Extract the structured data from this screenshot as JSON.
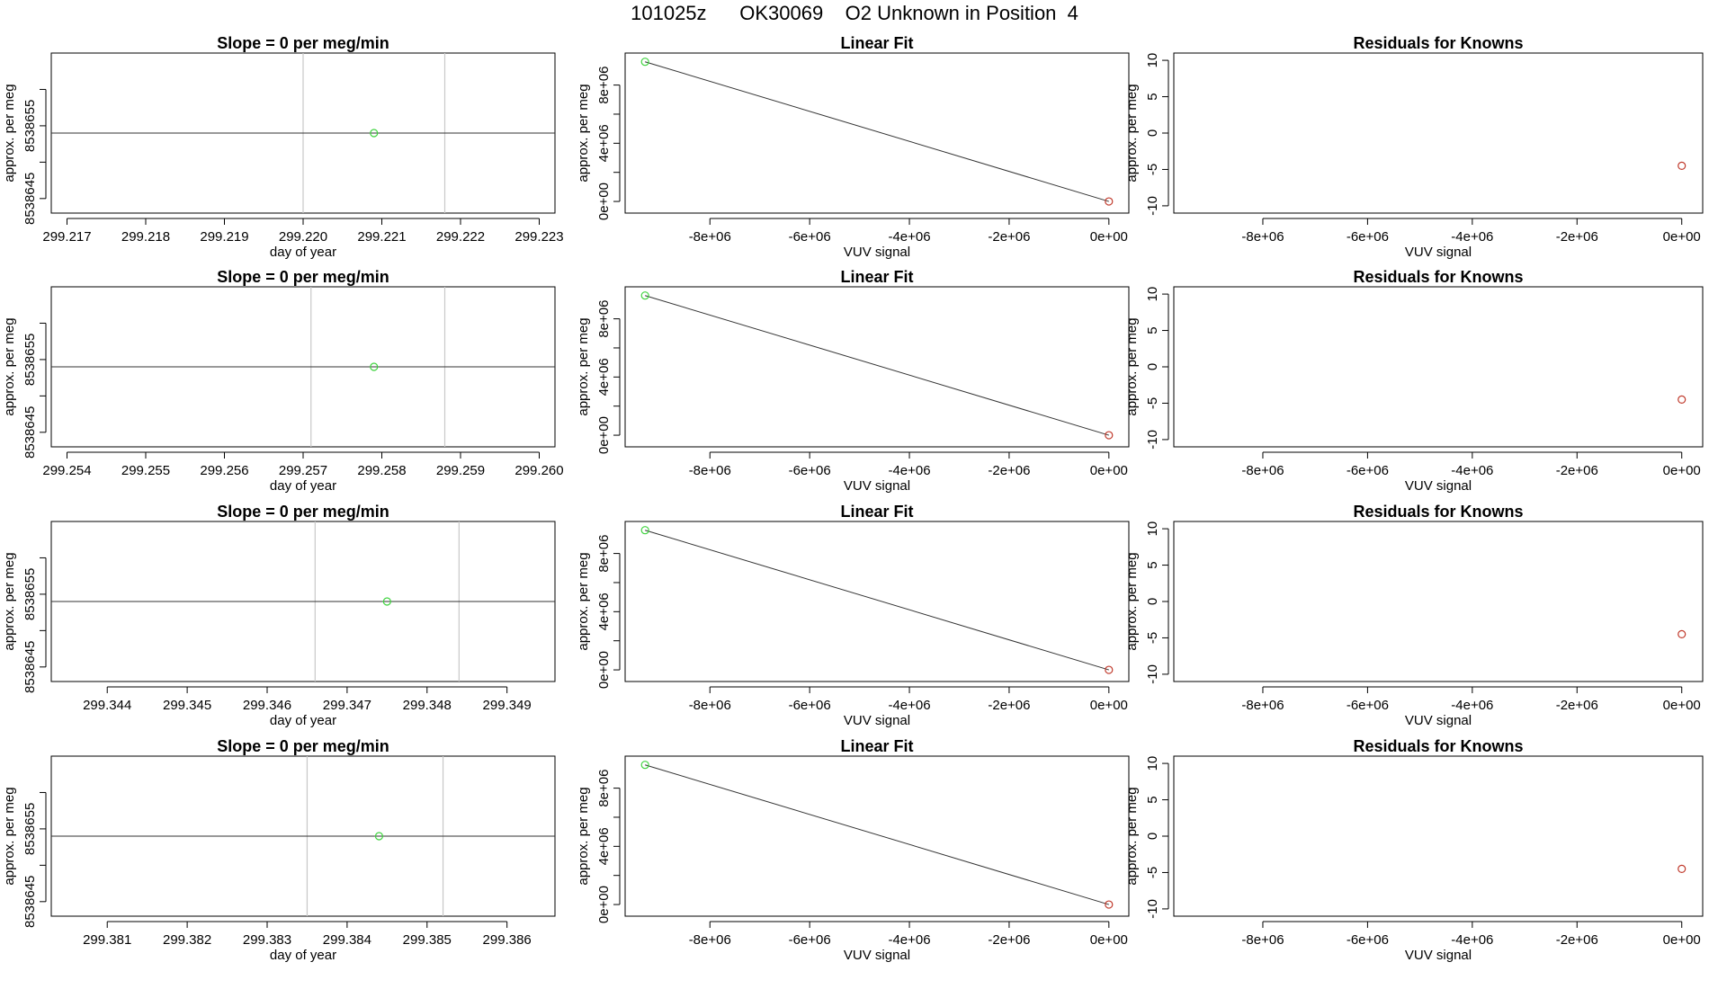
{
  "figure": {
    "title": "101025z      OK30069    O2 Unknown in Position  4"
  },
  "chart_data": [
    {
      "type": "line",
      "panel": "drift",
      "title": "Slope =  0  per meg/min",
      "xlabel": "day of year",
      "ylabel": "approx. per meg",
      "xlim": [
        299.2168,
        299.2232
      ],
      "ylim": [
        8538643,
        8538665
      ],
      "x_ticks": [
        299.217,
        299.218,
        299.219,
        299.22,
        299.221,
        299.222,
        299.223
      ],
      "x_tick_labels": [
        "299.217",
        "299.218",
        "299.219",
        "299.220",
        "299.221",
        "299.222",
        "299.223"
      ],
      "y_ticks": [
        8538645,
        8538650,
        8538655,
        8538660
      ],
      "y_tick_labels": [
        "8538645",
        "",
        "8538655",
        ""
      ],
      "vlines": [
        299.22,
        299.2218
      ],
      "series": [
        {
          "line": [
            [
              299.2168,
              8538654
            ],
            [
              299.2232,
              8538654
            ]
          ],
          "points": [
            {
              "x": 299.2209,
              "y": 8538654,
              "color": "#3fd33f"
            }
          ]
        }
      ]
    },
    {
      "type": "scatter",
      "panel": "fit",
      "title": "Linear Fit",
      "xlabel": "VUV signal",
      "ylabel": "approx. per meg",
      "xlim": [
        -9700000,
        400000
      ],
      "ylim": [
        -800000,
        10200000
      ],
      "x_ticks": [
        -8000000,
        -6000000,
        -4000000,
        -2000000,
        0
      ],
      "x_tick_labels": [
        "-8e+06",
        "-6e+06",
        "-4e+06",
        "-2e+06",
        "0e+00"
      ],
      "y_ticks": [
        0,
        2000000,
        4000000,
        6000000,
        8000000
      ],
      "y_tick_labels": [
        "0e+00",
        "",
        "4e+06",
        "",
        "8e+06"
      ],
      "series": [
        {
          "line": [
            [
              -9300000,
              9600000
            ],
            [
              0,
              0
            ]
          ],
          "points": [
            {
              "x": -9300000,
              "y": 9600000,
              "color": "#3fd33f"
            },
            {
              "x": 0,
              "y": 0,
              "color": "#c0392b"
            }
          ]
        }
      ]
    },
    {
      "type": "scatter",
      "panel": "resid",
      "title": "Residuals for Knowns",
      "xlabel": "VUV signal",
      "ylabel": "approx. per meg",
      "xlim": [
        -9700000,
        400000
      ],
      "ylim": [
        -11,
        11
      ],
      "x_ticks": [
        -8000000,
        -6000000,
        -4000000,
        -2000000,
        0
      ],
      "x_tick_labels": [
        "-8e+06",
        "-6e+06",
        "-4e+06",
        "-2e+06",
        "0e+00"
      ],
      "y_ticks": [
        -10,
        -5,
        0,
        5,
        10
      ],
      "y_tick_labels": [
        "-10",
        "-5",
        "0",
        "5",
        "10"
      ],
      "series": [
        {
          "points": [
            {
              "x": 0,
              "y": -4.5,
              "color": "#c0392b"
            }
          ]
        }
      ]
    },
    {
      "type": "line",
      "panel": "drift",
      "title": "Slope =  0  per meg/min",
      "xlabel": "day of year",
      "ylabel": "approx. per meg",
      "xlim": [
        299.2538,
        299.2602
      ],
      "ylim": [
        8538643,
        8538665
      ],
      "x_ticks": [
        299.254,
        299.255,
        299.256,
        299.257,
        299.258,
        299.259,
        299.26
      ],
      "x_tick_labels": [
        "299.254",
        "299.255",
        "299.256",
        "299.257",
        "299.258",
        "299.259",
        "299.260"
      ],
      "y_ticks": [
        8538645,
        8538650,
        8538655,
        8538660
      ],
      "y_tick_labels": [
        "8538645",
        "",
        "8538655",
        ""
      ],
      "vlines": [
        299.2571,
        299.2588
      ],
      "series": [
        {
          "line": [
            [
              299.2538,
              8538654
            ],
            [
              299.2602,
              8538654
            ]
          ],
          "points": [
            {
              "x": 299.2579,
              "y": 8538654,
              "color": "#3fd33f"
            }
          ]
        }
      ]
    },
    {
      "type": "scatter",
      "panel": "fit",
      "title": "Linear Fit",
      "xlabel": "VUV signal",
      "ylabel": "approx. per meg",
      "xlim": [
        -9700000,
        400000
      ],
      "ylim": [
        -800000,
        10200000
      ],
      "x_ticks": [
        -8000000,
        -6000000,
        -4000000,
        -2000000,
        0
      ],
      "x_tick_labels": [
        "-8e+06",
        "-6e+06",
        "-4e+06",
        "-2e+06",
        "0e+00"
      ],
      "y_ticks": [
        0,
        2000000,
        4000000,
        6000000,
        8000000
      ],
      "y_tick_labels": [
        "0e+00",
        "",
        "4e+06",
        "",
        "8e+06"
      ],
      "series": [
        {
          "line": [
            [
              -9300000,
              9600000
            ],
            [
              0,
              0
            ]
          ],
          "points": [
            {
              "x": -9300000,
              "y": 9600000,
              "color": "#3fd33f"
            },
            {
              "x": 0,
              "y": 0,
              "color": "#c0392b"
            }
          ]
        }
      ]
    },
    {
      "type": "scatter",
      "panel": "resid",
      "title": "Residuals for Knowns",
      "xlabel": "VUV signal",
      "ylabel": "approx. per meg",
      "xlim": [
        -9700000,
        400000
      ],
      "ylim": [
        -11,
        11
      ],
      "x_ticks": [
        -8000000,
        -6000000,
        -4000000,
        -2000000,
        0
      ],
      "x_tick_labels": [
        "-8e+06",
        "-6e+06",
        "-4e+06",
        "-2e+06",
        "0e+00"
      ],
      "y_ticks": [
        -10,
        -5,
        0,
        5,
        10
      ],
      "y_tick_labels": [
        "-10",
        "-5",
        "0",
        "5",
        "10"
      ],
      "series": [
        {
          "points": [
            {
              "x": 0,
              "y": -4.5,
              "color": "#c0392b"
            }
          ]
        }
      ]
    },
    {
      "type": "line",
      "panel": "drift",
      "title": "Slope =  0  per meg/min",
      "xlabel": "day of year",
      "ylabel": "approx. per meg",
      "xlim": [
        299.3433,
        299.3496
      ],
      "ylim": [
        8538643,
        8538665
      ],
      "x_ticks": [
        299.344,
        299.345,
        299.346,
        299.347,
        299.348,
        299.349
      ],
      "x_tick_labels": [
        "299.344",
        "299.345",
        "299.346",
        "299.347",
        "299.348",
        "299.349"
      ],
      "y_ticks": [
        8538645,
        8538650,
        8538655,
        8538660
      ],
      "y_tick_labels": [
        "8538645",
        "",
        "8538655",
        ""
      ],
      "vlines": [
        299.3466,
        299.3484
      ],
      "series": [
        {
          "line": [
            [
              299.3433,
              8538654
            ],
            [
              299.3496,
              8538654
            ]
          ],
          "points": [
            {
              "x": 299.3475,
              "y": 8538654,
              "color": "#3fd33f"
            }
          ]
        }
      ]
    },
    {
      "type": "scatter",
      "panel": "fit",
      "title": "Linear Fit",
      "xlabel": "VUV signal",
      "ylabel": "approx. per meg",
      "xlim": [
        -9700000,
        400000
      ],
      "ylim": [
        -800000,
        10200000
      ],
      "x_ticks": [
        -8000000,
        -6000000,
        -4000000,
        -2000000,
        0
      ],
      "x_tick_labels": [
        "-8e+06",
        "-6e+06",
        "-4e+06",
        "-2e+06",
        "0e+00"
      ],
      "y_ticks": [
        0,
        2000000,
        4000000,
        6000000,
        8000000
      ],
      "y_tick_labels": [
        "0e+00",
        "",
        "4e+06",
        "",
        "8e+06"
      ],
      "series": [
        {
          "line": [
            [
              -9300000,
              9600000
            ],
            [
              0,
              0
            ]
          ],
          "points": [
            {
              "x": -9300000,
              "y": 9600000,
              "color": "#3fd33f"
            },
            {
              "x": 0,
              "y": 0,
              "color": "#c0392b"
            }
          ]
        }
      ]
    },
    {
      "type": "scatter",
      "panel": "resid",
      "title": "Residuals for Knowns",
      "xlabel": "VUV signal",
      "ylabel": "approx. per meg",
      "xlim": [
        -9700000,
        400000
      ],
      "ylim": [
        -11,
        11
      ],
      "x_ticks": [
        -8000000,
        -6000000,
        -4000000,
        -2000000,
        0
      ],
      "x_tick_labels": [
        "-8e+06",
        "-6e+06",
        "-4e+06",
        "-2e+06",
        "0e+00"
      ],
      "y_ticks": [
        -10,
        -5,
        0,
        5,
        10
      ],
      "y_tick_labels": [
        "-10",
        "-5",
        "0",
        "5",
        "10"
      ],
      "series": [
        {
          "points": [
            {
              "x": 0,
              "y": -4.5,
              "color": "#c0392b"
            }
          ]
        }
      ]
    },
    {
      "type": "line",
      "panel": "drift",
      "title": "Slope =  0  per meg/min",
      "xlabel": "day of year",
      "ylabel": "approx. per meg",
      "xlim": [
        299.3803,
        299.3866
      ],
      "ylim": [
        8538643,
        8538665
      ],
      "x_ticks": [
        299.381,
        299.382,
        299.383,
        299.384,
        299.385,
        299.386
      ],
      "x_tick_labels": [
        "299.381",
        "299.382",
        "299.383",
        "299.384",
        "299.385",
        "299.386"
      ],
      "y_ticks": [
        8538645,
        8538650,
        8538655,
        8538660
      ],
      "y_tick_labels": [
        "8538645",
        "",
        "8538655",
        ""
      ],
      "vlines": [
        299.3835,
        299.3852
      ],
      "series": [
        {
          "line": [
            [
              299.3803,
              8538654
            ],
            [
              299.3866,
              8538654
            ]
          ],
          "points": [
            {
              "x": 299.3844,
              "y": 8538654,
              "color": "#3fd33f"
            }
          ]
        }
      ]
    },
    {
      "type": "scatter",
      "panel": "fit",
      "title": "Linear Fit",
      "xlabel": "VUV signal",
      "ylabel": "approx. per meg",
      "xlim": [
        -9700000,
        400000
      ],
      "ylim": [
        -800000,
        10200000
      ],
      "x_ticks": [
        -8000000,
        -6000000,
        -4000000,
        -2000000,
        0
      ],
      "x_tick_labels": [
        "-8e+06",
        "-6e+06",
        "-4e+06",
        "-2e+06",
        "0e+00"
      ],
      "y_ticks": [
        0,
        2000000,
        4000000,
        6000000,
        8000000
      ],
      "y_tick_labels": [
        "0e+00",
        "",
        "4e+06",
        "",
        "8e+06"
      ],
      "series": [
        {
          "line": [
            [
              -9300000,
              9600000
            ],
            [
              0,
              0
            ]
          ],
          "points": [
            {
              "x": -9300000,
              "y": 9600000,
              "color": "#3fd33f"
            },
            {
              "x": 0,
              "y": 0,
              "color": "#c0392b"
            }
          ]
        }
      ]
    },
    {
      "type": "scatter",
      "panel": "resid",
      "title": "Residuals for Knowns",
      "xlabel": "VUV signal",
      "ylabel": "approx. per meg",
      "xlim": [
        -9700000,
        400000
      ],
      "ylim": [
        -11,
        11
      ],
      "x_ticks": [
        -8000000,
        -6000000,
        -4000000,
        -2000000,
        0
      ],
      "x_tick_labels": [
        "-8e+06",
        "-6e+06",
        "-4e+06",
        "-2e+06",
        "0e+00"
      ],
      "y_ticks": [
        -10,
        -5,
        0,
        5,
        10
      ],
      "y_tick_labels": [
        "-10",
        "-5",
        "0",
        "5",
        "10"
      ],
      "series": [
        {
          "points": [
            {
              "x": 0,
              "y": -4.5,
              "color": "#c0392b"
            }
          ]
        }
      ]
    }
  ]
}
